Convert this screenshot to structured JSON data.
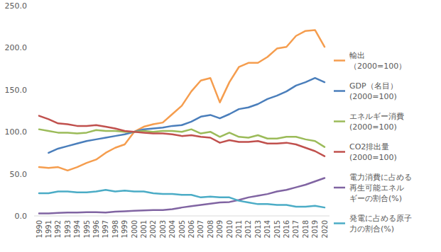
{
  "chart_data": {
    "type": "line",
    "categories": [
      "1990",
      "1991",
      "1992",
      "1993",
      "1994",
      "1995",
      "1996",
      "1997",
      "1998",
      "1999",
      "2000",
      "2001",
      "2002",
      "2003",
      "2004",
      "2005",
      "2006",
      "2007",
      "2008",
      "2009",
      "2010",
      "2011",
      "2012",
      "2013",
      "2014",
      "2015",
      "2016",
      "2017",
      "2018",
      "2019",
      "2020"
    ],
    "ylim": [
      0,
      250
    ],
    "yticks": [
      {
        "value": 0,
        "label": "0.0"
      },
      {
        "value": 50,
        "label": "50.0"
      },
      {
        "value": 100,
        "label": "100.0"
      },
      {
        "value": 150,
        "label": "150.0"
      },
      {
        "value": 200,
        "label": "200.0"
      },
      {
        "value": 250,
        "label": "250.0"
      }
    ],
    "grid": false,
    "legend": "right",
    "series": [
      {
        "name": "輸出\n（2000=100）",
        "color": "#f59d4e",
        "values": [
          58,
          57,
          58,
          54,
          58,
          63,
          67,
          75,
          81,
          85,
          100,
          106,
          109,
          111,
          121,
          131,
          148,
          161,
          164,
          135,
          159,
          177,
          182,
          182,
          189,
          199,
          201,
          214,
          220,
          221,
          201
        ]
      },
      {
        "name": "GDP（名目）\n(2000=100)",
        "color": "#4a7ebb",
        "values": [
          null,
          75,
          80,
          83,
          86,
          89,
          91,
          93,
          95,
          97,
          100,
          103,
          104,
          105,
          107,
          108,
          112,
          118,
          120,
          116,
          121,
          127,
          129,
          133,
          139,
          143,
          148,
          155,
          159,
          164,
          159
        ]
      },
      {
        "name": "エネルギー消費\n(2000=100)",
        "color": "#9bbb59",
        "values": [
          103,
          101,
          99,
          99,
          98,
          99,
          102,
          101,
          101,
          100,
          100,
          101,
          100,
          101,
          101,
          100,
          103,
          98,
          100,
          94,
          99,
          94,
          93,
          96,
          92,
          92,
          94,
          94,
          91,
          89,
          82
        ]
      },
      {
        "name": "CO2排出量\n(2000=100)",
        "color": "#c0504d",
        "values": [
          119,
          115,
          110,
          109,
          107,
          107,
          108,
          106,
          104,
          101,
          100,
          99,
          98,
          98,
          97,
          95,
          96,
          94,
          93,
          87,
          90,
          88,
          88,
          89,
          86,
          86,
          87,
          85,
          81,
          77,
          71
        ]
      },
      {
        "name": "電力消費に占める\n再生可能エネル\nギーの割合(%)",
        "color": "#8064a2",
        "values": [
          3,
          3,
          3.5,
          4,
          4,
          4.5,
          4.5,
          4,
          5,
          5.5,
          6,
          6.5,
          7,
          7,
          8,
          10,
          11.5,
          13,
          14.5,
          16,
          16.5,
          19,
          22,
          24,
          26,
          29,
          31,
          34,
          37,
          41,
          45
        ]
      },
      {
        "name": "発電に占める原子\n力の割合(%)",
        "color": "#4bacc6",
        "values": [
          27,
          27,
          29,
          29,
          28,
          28,
          29,
          31,
          29,
          30,
          29,
          29,
          27,
          26,
          26,
          25,
          25,
          22,
          23,
          22,
          22,
          18,
          16,
          14,
          14,
          13,
          13,
          11,
          11,
          12,
          10
        ]
      }
    ]
  }
}
